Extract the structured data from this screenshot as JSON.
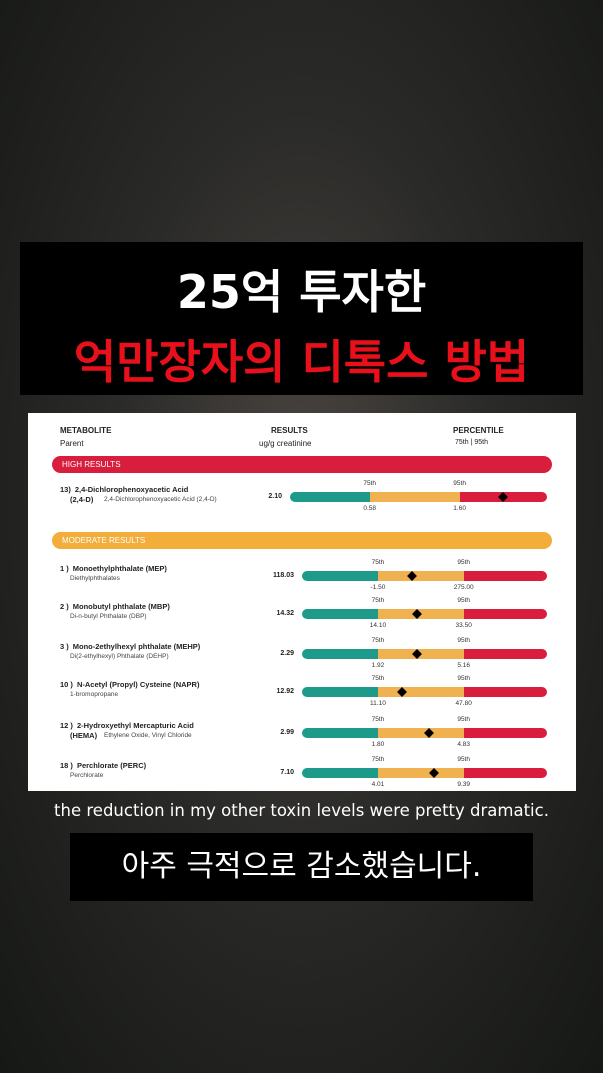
{
  "title": {
    "line1": "25억 투자한",
    "line2": "억만장자의 디톡스 방법"
  },
  "report": {
    "header": {
      "metabolite": "METABOLITE",
      "parent": "Parent",
      "results": "RESULTS",
      "unit": "ug/g creatinine",
      "percentile": "PERCENTILE",
      "percentile_sub": "75th | 95th"
    },
    "percentile_labels": [
      "75th",
      "95th"
    ],
    "sections": [
      {
        "title": "HIGH RESULTS",
        "rows": [
          {
            "number": "13)",
            "name": "2,4-Dichlorophenoxyacetic Acid",
            "abbr": "(2,4-D)",
            "parent": "2,4-Dichlorophenoxyacetic Acid (2,4-D)",
            "result": "2.10",
            "p75": "0.58",
            "p95": "1.60"
          }
        ]
      },
      {
        "title": "MODERATE RESULTS",
        "rows": [
          {
            "number": "1 )",
            "name": "Monoethylphthalate (MEP)",
            "abbr": "",
            "parent": "Diethylphthalates",
            "result": "118.03",
            "p75": "-1.50",
            "p95": "275.00"
          },
          {
            "number": "2 )",
            "name": "Monobutyl phthalate (MBP)",
            "abbr": "",
            "parent": "Di-n-butyl Phthalate (DBP)",
            "result": "14.32",
            "p75": "14.10",
            "p95": "33.50"
          },
          {
            "number": "3 )",
            "name": "Mono-2ethylhexyl phthalate (MEHP)",
            "abbr": "",
            "parent": "Di(2-ethylhexyl) Phthalate (DEHP)",
            "result": "2.29",
            "p75": "1.92",
            "p95": "5.16"
          },
          {
            "number": "10 )",
            "name": "N-Acetyl (Propyl) Cysteine (NAPR)",
            "abbr": "",
            "parent": "1-bromopropane",
            "result": "12.92",
            "p75": "11.10",
            "p95": "47.80"
          },
          {
            "number": "12 )",
            "name": "2-Hydroxyethyl Mercapturic Acid",
            "abbr": "(HEMA)",
            "parent": "Ethylene Oxide, Vinyl Chloride",
            "result": "2.99",
            "p75": "1.80",
            "p95": "4.83"
          },
          {
            "number": "18 )",
            "name": "Perchlorate (PERC)",
            "abbr": "",
            "parent": "Perchlorate",
            "result": "7.10",
            "p75": "4.01",
            "p95": "9.39"
          }
        ]
      }
    ]
  },
  "subtitle": {
    "english": "the reduction in my other toxin levels were pretty dramatic.",
    "korean": "아주 극적으로 감소했습니다."
  }
}
